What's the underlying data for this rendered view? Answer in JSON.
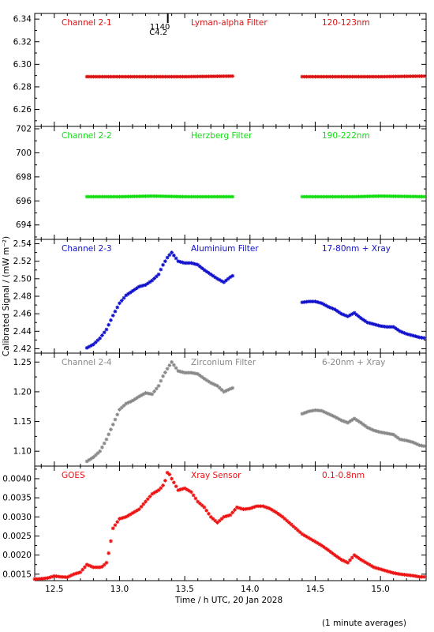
{
  "figure": {
    "xlabel": "Time / h UTC, 20 Jan 2028",
    "ylabel": "Calibrated Signal / (mW m⁻²)",
    "footnote": "(1 minute averages)",
    "xlim": [
      12.35,
      15.35
    ],
    "xticks": [
      "12.5",
      "13.0",
      "13.5",
      "14.0",
      "14.5",
      "15.0"
    ],
    "xtick_values": [
      12.5,
      13.0,
      13.5,
      14.0,
      14.5,
      15.0
    ]
  },
  "chart_data": [
    {
      "type": "scatter",
      "name": "Channel 2-1",
      "filter": "Lyman-alpha Filter",
      "band": "120-123nm",
      "color": "#dd1111",
      "ylim": [
        6.245,
        6.345
      ],
      "yticks": [
        6.26,
        6.28,
        6.3,
        6.32,
        6.34
      ],
      "ytick_labels": [
        "6.26",
        "6.28",
        "6.30",
        "6.32",
        "6.34"
      ],
      "annotation": {
        "time": 13.37,
        "labels": [
          "C4.2",
          "1140"
        ]
      },
      "series": [
        {
          "x": [
            12.75,
            13.0,
            13.25,
            13.5,
            13.875
          ],
          "y": [
            6.289,
            6.289,
            6.289,
            6.289,
            6.2895
          ]
        },
        {
          "x": [
            14.4,
            14.8,
            15.0,
            15.35
          ],
          "y": [
            6.289,
            6.289,
            6.289,
            6.2895
          ]
        }
      ]
    },
    {
      "type": "scatter",
      "name": "Channel 2-2",
      "filter": "Herzberg Filter",
      "band": "190-222nm",
      "color": "#11dd11",
      "ylim": [
        692.8,
        702.2
      ],
      "yticks": [
        694,
        696,
        698,
        700,
        702
      ],
      "ytick_labels": [
        "694",
        "696",
        "698",
        "700",
        "702"
      ],
      "series": [
        {
          "x": [
            12.75,
            13.0,
            13.25,
            13.5,
            13.875
          ],
          "y": [
            696.35,
            696.35,
            696.4,
            696.35,
            696.35
          ]
        },
        {
          "x": [
            14.4,
            14.8,
            15.0,
            15.35
          ],
          "y": [
            696.35,
            696.35,
            696.4,
            696.35
          ]
        }
      ]
    },
    {
      "type": "scatter",
      "name": "Channel 2-3",
      "filter": "Aluminium Filter",
      "band": "17-80nm + Xray",
      "color": "#1111cc",
      "ylim": [
        2.415,
        2.545
      ],
      "yticks": [
        2.42,
        2.44,
        2.46,
        2.48,
        2.5,
        2.52,
        2.54
      ],
      "ytick_labels": [
        "2.42",
        "2.44",
        "2.46",
        "2.48",
        "2.50",
        "2.52",
        "2.54"
      ],
      "series": [
        {
          "x": [
            12.75,
            12.8,
            12.85,
            12.9,
            12.95,
            13.0,
            13.05,
            13.1,
            13.15,
            13.2,
            13.25,
            13.3,
            13.33,
            13.37,
            13.4,
            13.45,
            13.5,
            13.55,
            13.6,
            13.65,
            13.7,
            13.75,
            13.8,
            13.85,
            13.875
          ],
          "y": [
            2.421,
            2.425,
            2.432,
            2.442,
            2.458,
            2.472,
            2.481,
            2.486,
            2.491,
            2.493,
            2.498,
            2.505,
            2.515,
            2.525,
            2.53,
            2.52,
            2.518,
            2.518,
            2.516,
            2.51,
            2.505,
            2.5,
            2.496,
            2.502,
            2.504
          ]
        },
        {
          "x": [
            14.4,
            14.45,
            14.5,
            14.55,
            14.6,
            14.65,
            14.7,
            14.75,
            14.8,
            14.85,
            14.9,
            14.95,
            15.0,
            15.05,
            15.1,
            15.15,
            15.2,
            15.25,
            15.3,
            15.35
          ],
          "y": [
            2.473,
            2.474,
            2.474,
            2.472,
            2.468,
            2.465,
            2.46,
            2.457,
            2.461,
            2.455,
            2.45,
            2.448,
            2.446,
            2.445,
            2.445,
            2.44,
            2.437,
            2.435,
            2.433,
            2.432
          ]
        }
      ]
    },
    {
      "type": "scatter",
      "name": "Channel 2-4",
      "filter": "Zirconium Filter",
      "band": "6-20nm + Xray",
      "color": "#888888",
      "ylim": [
        1.075,
        1.265
      ],
      "yticks": [
        1.1,
        1.15,
        1.2,
        1.25
      ],
      "ytick_labels": [
        "1.10",
        "1.15",
        "1.20",
        "1.25"
      ],
      "series": [
        {
          "x": [
            12.75,
            12.8,
            12.85,
            12.9,
            12.95,
            13.0,
            13.05,
            13.1,
            13.15,
            13.2,
            13.25,
            13.3,
            13.33,
            13.37,
            13.4,
            13.45,
            13.5,
            13.55,
            13.6,
            13.65,
            13.7,
            13.75,
            13.8,
            13.85,
            13.875
          ],
          "y": [
            1.083,
            1.09,
            1.1,
            1.12,
            1.145,
            1.17,
            1.18,
            1.185,
            1.192,
            1.198,
            1.196,
            1.21,
            1.225,
            1.24,
            1.25,
            1.235,
            1.232,
            1.232,
            1.23,
            1.222,
            1.215,
            1.21,
            1.2,
            1.205,
            1.207
          ]
        },
        {
          "x": [
            14.4,
            14.45,
            14.5,
            14.55,
            14.6,
            14.65,
            14.7,
            14.75,
            14.8,
            14.85,
            14.9,
            14.95,
            15.0,
            15.05,
            15.1,
            15.15,
            15.2,
            15.25,
            15.3,
            15.35
          ],
          "y": [
            1.163,
            1.167,
            1.169,
            1.168,
            1.163,
            1.158,
            1.152,
            1.148,
            1.155,
            1.148,
            1.14,
            1.135,
            1.132,
            1.13,
            1.128,
            1.12,
            1.118,
            1.115,
            1.11,
            1.108
          ]
        }
      ]
    },
    {
      "type": "scatter",
      "name": "GOES",
      "filter": "Xray Sensor",
      "band": "0.1-0.8nm",
      "color": "#ee1111",
      "ylim": [
        0.00133,
        0.00433
      ],
      "yticks": [
        0.0015,
        0.002,
        0.0025,
        0.003,
        0.0035,
        0.004
      ],
      "ytick_labels": [
        "0.0015",
        "0.0020",
        "0.0025",
        "0.0030",
        "0.0035",
        "0.0040"
      ],
      "series": [
        {
          "x": [
            12.35,
            12.4,
            12.45,
            12.5,
            12.55,
            12.6,
            12.65,
            12.7,
            12.75,
            12.8,
            12.85,
            12.87,
            12.9,
            12.92,
            12.95,
            13.0,
            13.05,
            13.1,
            13.15,
            13.2,
            13.25,
            13.3,
            13.33,
            13.35,
            13.37,
            13.4,
            13.45,
            13.5,
            13.55,
            13.6,
            13.65,
            13.7,
            13.75,
            13.8,
            13.85,
            13.9,
            13.95,
            14.0,
            14.05,
            14.1,
            14.15,
            14.2,
            14.25,
            14.3,
            14.35,
            14.4,
            14.45,
            14.5,
            14.55,
            14.6,
            14.65,
            14.7,
            14.75,
            14.8,
            14.85,
            14.9,
            14.95,
            15.0,
            15.05,
            15.1,
            15.15,
            15.2,
            15.25,
            15.3,
            15.35
          ],
          "y": [
            0.00137,
            0.00138,
            0.0014,
            0.00145,
            0.00143,
            0.00142,
            0.0015,
            0.00155,
            0.00175,
            0.00168,
            0.00168,
            0.0017,
            0.0018,
            0.0021,
            0.0027,
            0.00295,
            0.003,
            0.0031,
            0.0032,
            0.0034,
            0.0036,
            0.0037,
            0.0038,
            0.00395,
            0.0042,
            0.004,
            0.0037,
            0.00375,
            0.00365,
            0.0034,
            0.00325,
            0.003,
            0.00285,
            0.003,
            0.00305,
            0.00325,
            0.0032,
            0.00322,
            0.00328,
            0.00328,
            0.00322,
            0.00312,
            0.003,
            0.00285,
            0.0027,
            0.00255,
            0.00245,
            0.00235,
            0.00225,
            0.00213,
            0.002,
            0.00188,
            0.0018,
            0.002,
            0.00188,
            0.00178,
            0.00168,
            0.00163,
            0.00158,
            0.00153,
            0.0015,
            0.00148,
            0.00146,
            0.00143,
            0.00143
          ]
        }
      ]
    }
  ]
}
